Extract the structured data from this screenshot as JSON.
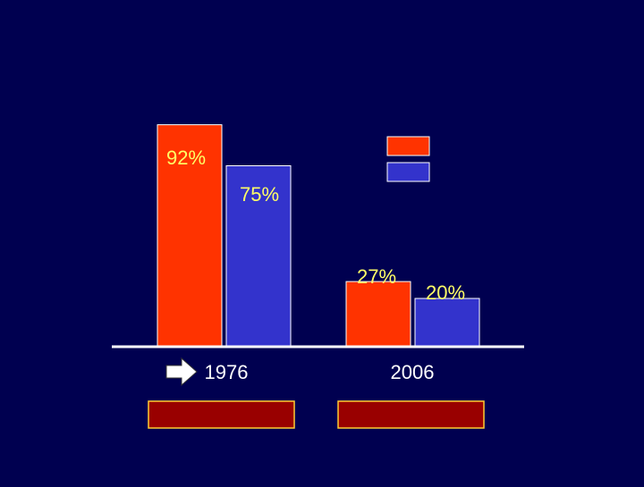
{
  "colors": {
    "background": "#000050",
    "series_a": "#ff3300",
    "series_b": "#3333cc",
    "value_label": "#ffff66",
    "tick_label": "#ffffff",
    "bar_border": "#ffffff",
    "caption_box": "#990000",
    "caption_border": "#ffcc33",
    "axis": "#ffffff"
  },
  "chart_data": {
    "type": "bar",
    "categories": [
      "1976",
      "2006"
    ],
    "series": [
      {
        "values": [
          92,
          27
        ],
        "data_labels": [
          "92%",
          "27%"
        ]
      },
      {
        "values": [
          75,
          20
        ],
        "data_labels": [
          "75%",
          "20%"
        ]
      }
    ],
    "ylim": [
      0,
      100
    ],
    "grid": false,
    "legend": {
      "placement": "top-right",
      "entries": [
        "",
        ""
      ]
    },
    "annotations": [
      "arrow-right-icon at 1976 category label"
    ]
  }
}
